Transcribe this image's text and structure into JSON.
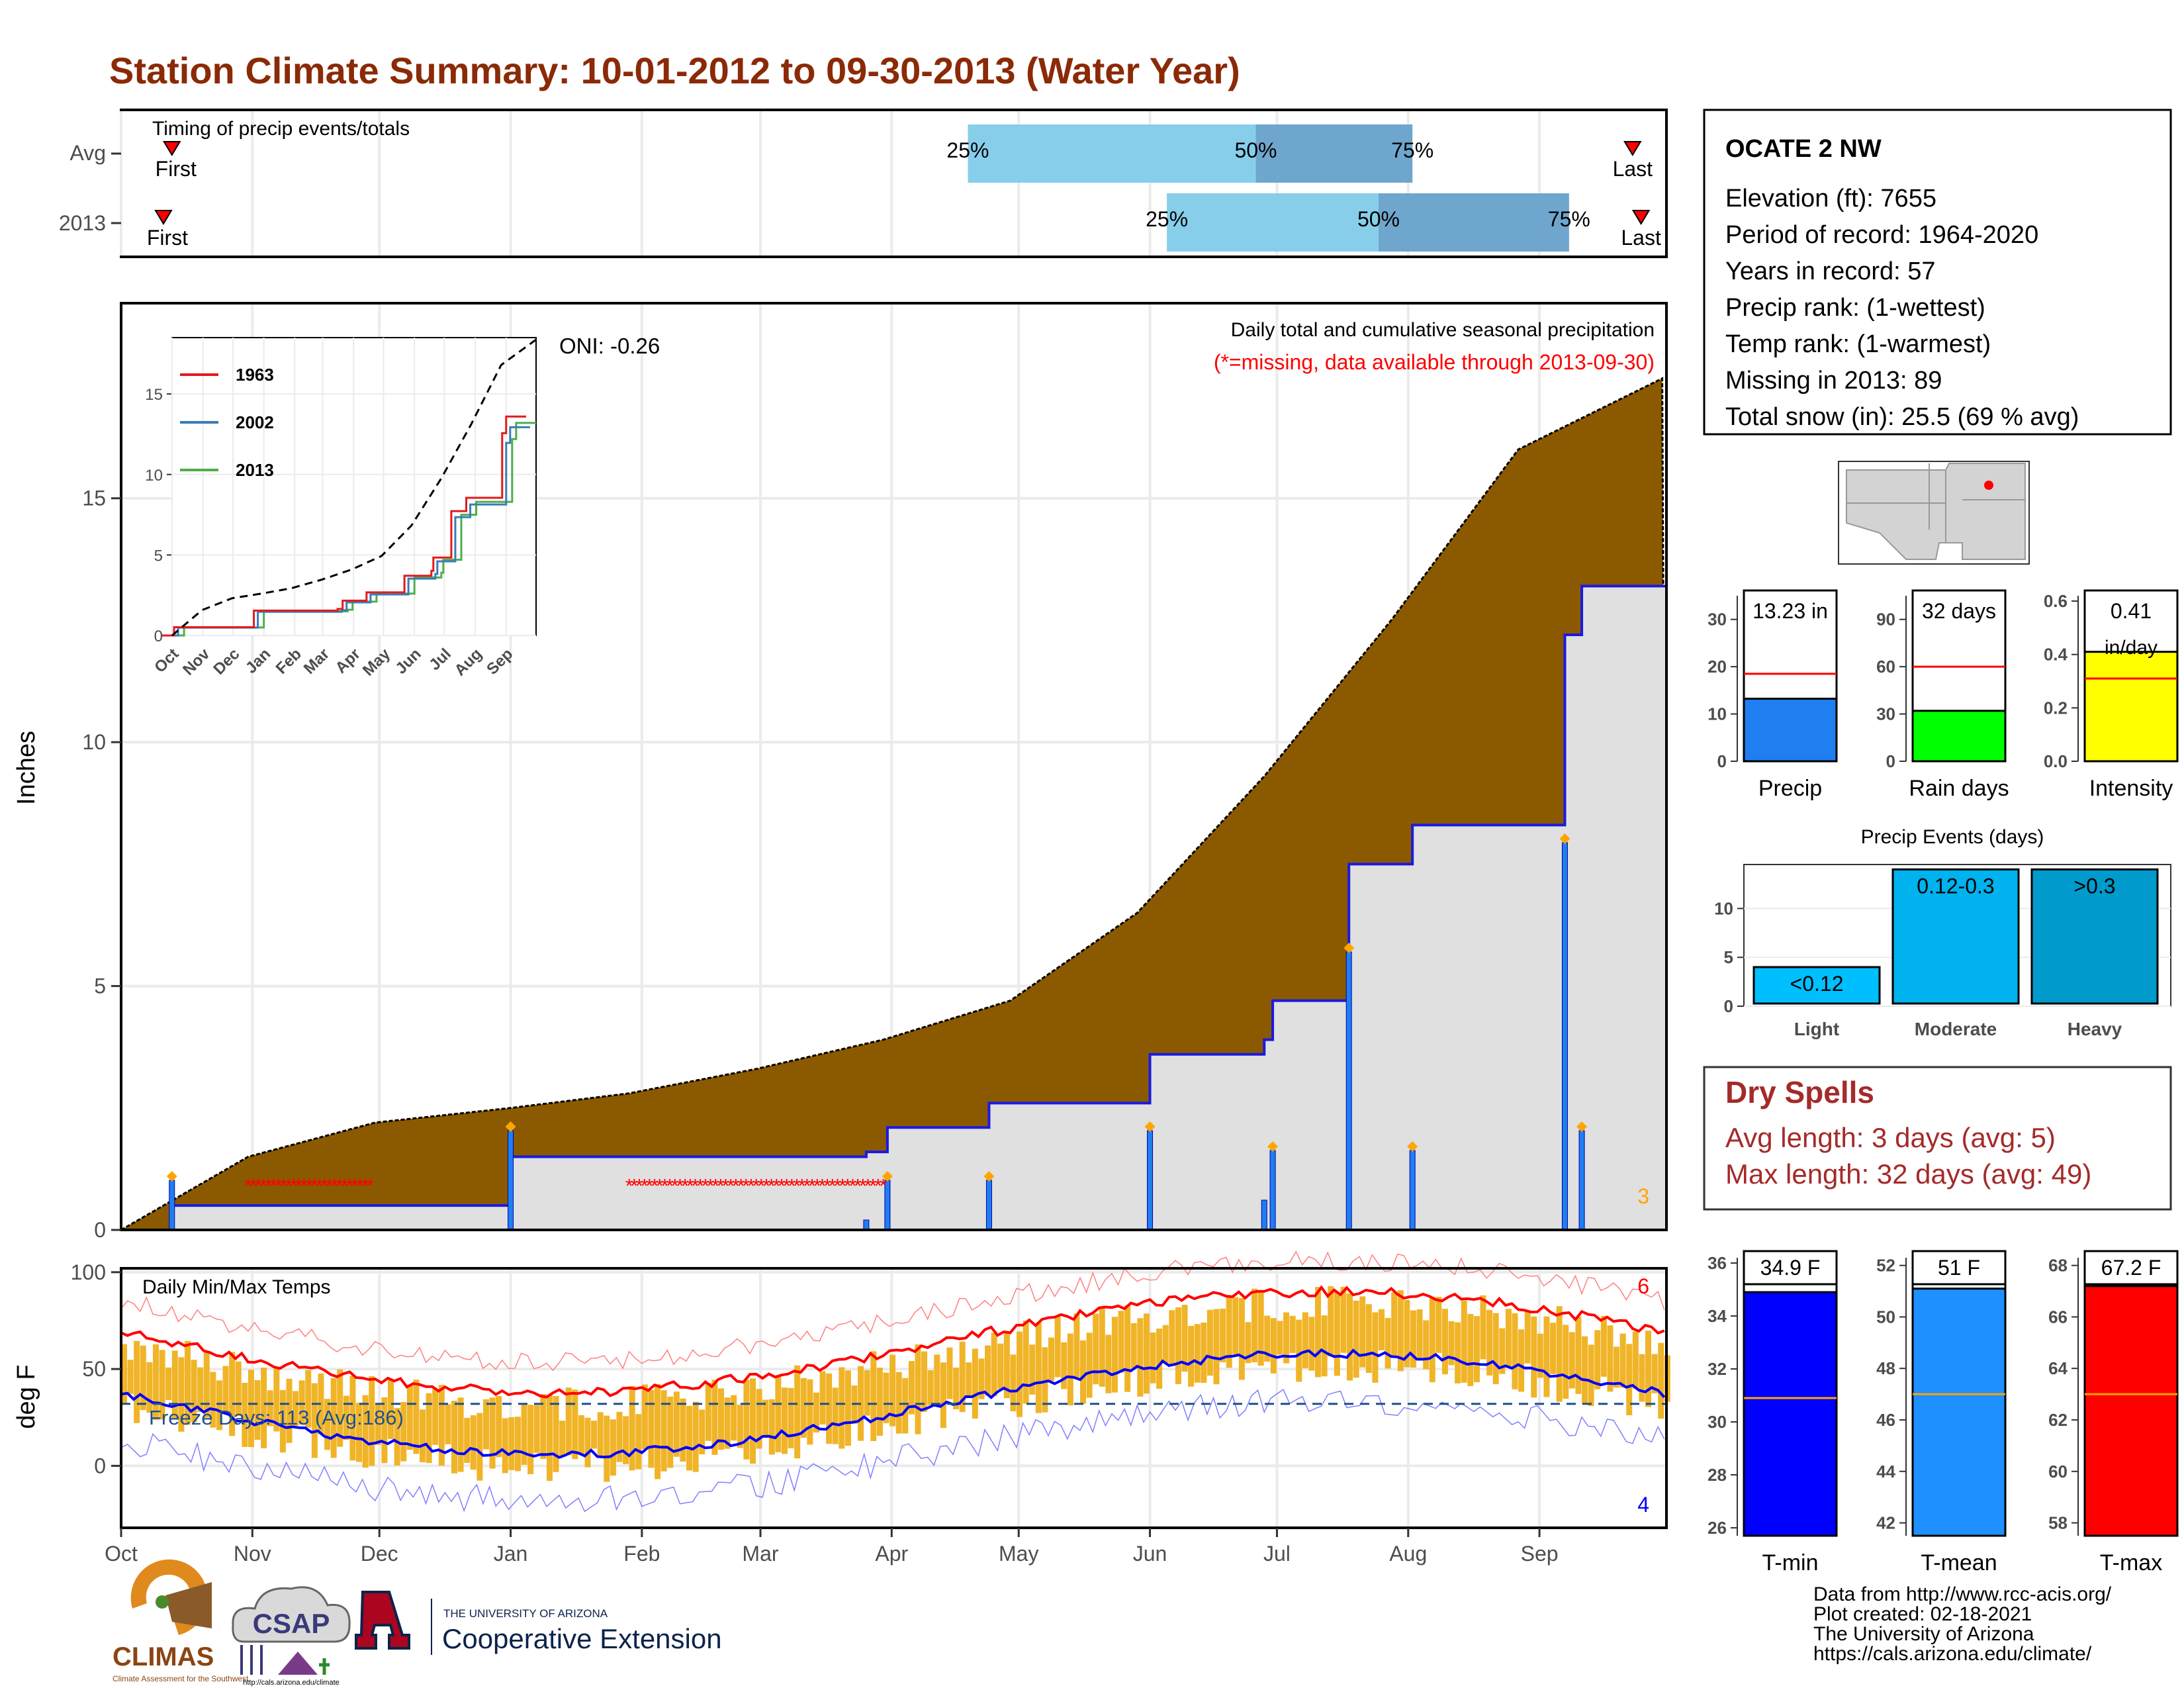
{
  "title": "Station Climate Summary: 10-01-2012 to 09-30-2013 (Water Year)",
  "colors": {
    "title": "#8b2a06",
    "cum_fill": "#8b5a00",
    "normal_fill": "#e0e0e0",
    "precip_bar": "#1f7ef0",
    "rain_days_bar": "#00ff00",
    "intensity_bar": "#ffff00",
    "quartile_light": "#87ceeb",
    "quartile_dark": "#6fa6cd",
    "temp_range": "#f0b428",
    "tmax_line": "#ff0000",
    "tmin_line": "#0000ff",
    "tmin_bar": "#0000ff",
    "tmean_bar": "#1e90ff",
    "tmax_bar": "#ff0000",
    "dry": "#a52a2a"
  },
  "months": [
    "Oct",
    "Nov",
    "Dec",
    "Jan",
    "Feb",
    "Mar",
    "Apr",
    "May",
    "Jun",
    "Jul",
    "Aug",
    "Sep"
  ],
  "timing_panel": {
    "label": "Timing of precip events/totals",
    "rows": [
      {
        "label": "Avg",
        "first": "First",
        "last": "Last",
        "q25": "25%",
        "q50": "50%",
        "q75": "75%",
        "q25_doy": 200,
        "q50_doy": 268,
        "q75_doy": 305,
        "first_doy": 12,
        "last_doy": 357
      },
      {
        "label": "2013",
        "first": "First",
        "last": "Last",
        "q25": "25%",
        "q50": "50%",
        "q75": "75%",
        "q25_doy": 247,
        "q50_doy": 297,
        "q75_doy": 342,
        "first_doy": 10,
        "last_doy": 359
      }
    ]
  },
  "precip_panel": {
    "ylabel": "Inches",
    "yticks": [
      0,
      5,
      10,
      15
    ],
    "ylim": [
      0,
      19
    ],
    "subtitle": "Daily total and cumulative seasonal precipitation",
    "missing_note": "(*=missing, data available through 2013-09-30)",
    "oni": "ONI: -0.26",
    "corner_count": "3",
    "missing_ranges": [
      [
        30,
        60
      ],
      [
        120,
        180
      ]
    ]
  },
  "inset": {
    "yticks": [
      0,
      5,
      10,
      15
    ],
    "xticks": [
      "Oct",
      "Nov",
      "Dec",
      "Jan",
      "Feb",
      "Mar",
      "Apr",
      "May",
      "Jun",
      "Jul",
      "Aug",
      "Sep"
    ],
    "legend": [
      {
        "name": "1963",
        "color": "#e41a1c"
      },
      {
        "name": "2002",
        "color": "#377eb8"
      },
      {
        "name": "2013",
        "color": "#4daf4a"
      }
    ]
  },
  "chart_data": {
    "type": "area",
    "series": [
      {
        "name": "cumulative normal",
        "x": [
          0,
          30,
          60,
          92,
          120,
          150,
          180,
          210,
          240,
          270,
          300,
          330,
          365
        ],
        "values": [
          0,
          1.5,
          2.2,
          2.5,
          2.8,
          3.3,
          3.9,
          4.7,
          6.5,
          9.3,
          12.5,
          16.0,
          17.5
        ]
      },
      {
        "name": "2013 cumulative",
        "x": [
          0,
          10,
          12,
          73,
          92,
          121,
          165,
          176,
          180,
          181,
          205,
          240,
          243,
          270,
          272,
          290,
          305,
          340,
          341,
          345,
          365
        ],
        "values": [
          0,
          0,
          0.5,
          0.5,
          1.5,
          1.5,
          1.5,
          1.6,
          1.6,
          2.1,
          2.6,
          2.6,
          3.6,
          3.9,
          4.7,
          7.5,
          8.3,
          8.3,
          12.2,
          13.2,
          13.2
        ]
      }
    ],
    "xlabel": "",
    "ylabel": "Inches",
    "ylim": [
      0,
      19
    ]
  },
  "temp_panel": {
    "ylabel": "deg F",
    "label": "Daily Min/Max Temps",
    "yticks": [
      0,
      50,
      100
    ],
    "ylim": [
      -32,
      102
    ],
    "freeze_days": "Freeze Days: 113 (Avg:186)",
    "freeze_line": 32,
    "count_high": "6",
    "count_low": "4"
  },
  "station": {
    "name": "OCATE 2 NW",
    "lines": [
      "Elevation (ft): 7655",
      "Period of record: 1964-2020",
      "Years in record: 57",
      "Precip rank:  (1-wettest)",
      "Temp rank:  (1-warmest)",
      "Missing in 2013: 89",
      "Total snow (in): 25.5 (69 % avg)"
    ]
  },
  "summary_bars": [
    {
      "label": "Precip",
      "value_label": "13.23 in",
      "value": 13.23,
      "avg": 18.5,
      "ymax": 35,
      "yticks": [
        0,
        10,
        20,
        30
      ],
      "tick_labels": [
        "0",
        "10",
        "20",
        "30"
      ]
    },
    {
      "label": "Rain days",
      "value_label": "32 days",
      "value": 32,
      "avg": 60,
      "ymax": 105,
      "yticks": [
        0,
        30,
        60,
        90
      ],
      "tick_labels": [
        "0",
        "30",
        "60",
        "90"
      ]
    },
    {
      "label": "Intensity",
      "value_label": "0.41",
      "value_label2": "in/day",
      "value": 0.41,
      "avg": 0.31,
      "ymax": 0.62,
      "yticks": [
        0,
        0.2,
        0.4,
        0.6
      ],
      "tick_labels": [
        "0.0",
        "0.2",
        "0.4",
        "0.6"
      ]
    }
  ],
  "precip_events": {
    "title": "Precip Events (days)",
    "yticks": [
      0,
      5,
      10
    ],
    "ymax": 14.5,
    "bars": [
      {
        "label": "Light",
        "range": "<0.12",
        "value": 4,
        "color": "#00bfff"
      },
      {
        "label": "Moderate",
        "range": "0.12-0.3",
        "value": 14,
        "color": "#00b2ee"
      },
      {
        "label": "Heavy",
        "range": ">0.3",
        "value": 14,
        "color": "#009acd"
      }
    ]
  },
  "dry_spells": {
    "title": "Dry Spells",
    "avg": "Avg length: 3 days (avg: 5)",
    "max": "Max length: 32 days (avg: 49)"
  },
  "temp_bars": [
    {
      "label": "T-min",
      "value_label": "34.9 F",
      "value": 34.9,
      "avg": 30.9,
      "ymin": 25.7,
      "ymax": 36.2,
      "yticks": [
        26,
        28,
        30,
        32,
        34,
        36
      ],
      "color": "#0000ff"
    },
    {
      "label": "T-mean",
      "value_label": "51 F",
      "value": 51.1,
      "avg": 47.0,
      "ymin": 41.5,
      "ymax": 52.3,
      "yticks": [
        42,
        44,
        46,
        48,
        50,
        52
      ],
      "color": "#1e90ff"
    },
    {
      "label": "T-max",
      "value_label": "67.2 F",
      "value": 67.2,
      "avg": 63.0,
      "ymin": 57.5,
      "ymax": 68.3,
      "yticks": [
        58,
        60,
        62,
        64,
        66,
        68
      ],
      "color": "#ff0000"
    }
  ],
  "credits": [
    "Data from http://www.rcc-acis.org/",
    "Plot created: 02-18-2021",
    "The University of Arizona",
    "https://cals.arizona.edu/climate/"
  ],
  "logos": {
    "climas": "CLIMAS",
    "climas_sub": "Climate Assessment for the Southwest",
    "csap": "CSAP",
    "csap_url": "http://cals.arizona.edu/climate",
    "ua_top": "THE UNIVERSITY OF ARIZONA",
    "ua_main": "Cooperative Extension"
  }
}
